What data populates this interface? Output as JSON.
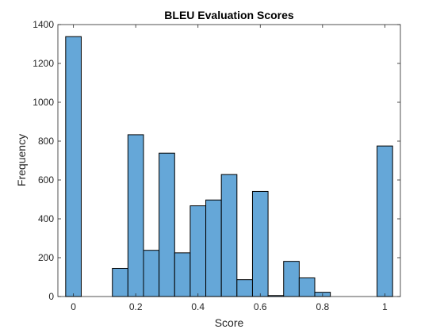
{
  "chart_data": {
    "type": "bar",
    "title": "BLEU Evaluation Scores",
    "xlabel": "Score",
    "ylabel": "Frequency",
    "xlim": [
      -0.05,
      1.05
    ],
    "ylim": [
      0,
      1400
    ],
    "xticks": [
      0,
      0.2,
      0.4,
      0.6,
      0.8,
      1
    ],
    "xtick_labels": [
      "0",
      "0.2",
      "0.4",
      "0.6",
      "0.8",
      "1"
    ],
    "yticks": [
      0,
      200,
      400,
      600,
      800,
      1000,
      1200,
      1400
    ],
    "ytick_labels": [
      "0",
      "200",
      "400",
      "600",
      "800",
      "1000",
      "1200",
      "1400"
    ],
    "bin_width": 0.05,
    "bins": [
      {
        "x0": -0.025,
        "value": 1338
      },
      {
        "x0": 0.025,
        "value": 0
      },
      {
        "x0": 0.075,
        "value": 0
      },
      {
        "x0": 0.125,
        "value": 145
      },
      {
        "x0": 0.175,
        "value": 833
      },
      {
        "x0": 0.225,
        "value": 238
      },
      {
        "x0": 0.275,
        "value": 738
      },
      {
        "x0": 0.325,
        "value": 225
      },
      {
        "x0": 0.375,
        "value": 467
      },
      {
        "x0": 0.425,
        "value": 497
      },
      {
        "x0": 0.475,
        "value": 628
      },
      {
        "x0": 0.525,
        "value": 87
      },
      {
        "x0": 0.575,
        "value": 541
      },
      {
        "x0": 0.625,
        "value": 5
      },
      {
        "x0": 0.675,
        "value": 181
      },
      {
        "x0": 0.725,
        "value": 96
      },
      {
        "x0": 0.775,
        "value": 22
      },
      {
        "x0": 0.825,
        "value": 0
      },
      {
        "x0": 0.875,
        "value": 0
      },
      {
        "x0": 0.925,
        "value": 0
      },
      {
        "x0": 0.975,
        "value": 775
      }
    ],
    "bar_color": "#65a7d8",
    "edge_color": "#000000",
    "grid": false,
    "legend": "none"
  }
}
